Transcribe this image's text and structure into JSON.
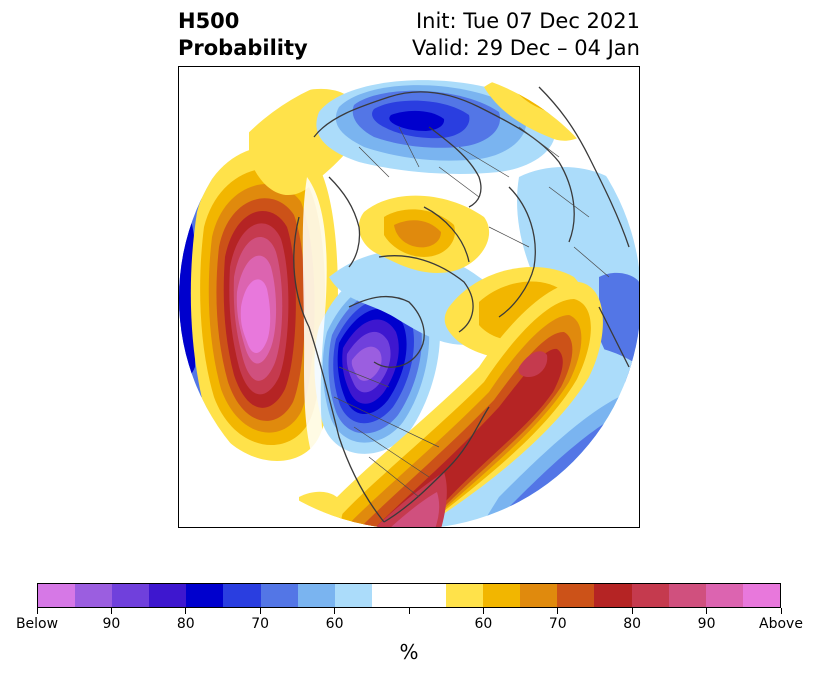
{
  "title": {
    "left_line1": "H500",
    "left_line2": "Probability",
    "right_line1": "Init: Tue 07 Dec 2021",
    "right_line2": "Valid: 29 Dec – 04 Jan"
  },
  "map": {
    "projection": "north polar stereographic",
    "anomalies": [
      {
        "region": "northeast Pacific / Gulf of Alaska",
        "category": "Above",
        "max_probability": "90+"
      },
      {
        "region": "western Canada / Pacific Northwest",
        "category": "Below",
        "max_probability": "90+"
      },
      {
        "region": "eastern United States / western Atlantic",
        "category": "Above",
        "max_probability": "80"
      },
      {
        "region": "central Atlantic",
        "category": "Below",
        "max_probability": "80"
      },
      {
        "region": "north-central Russia / Barents region",
        "category": "Below",
        "max_probability": "80"
      },
      {
        "region": "Siberia / East Asia",
        "category": "Above",
        "max_probability": "65"
      },
      {
        "region": "Greenland / Arctic",
        "category": "Above",
        "max_probability": "60"
      }
    ]
  },
  "colorbar": {
    "unit": "%",
    "tick_labels": [
      "Below",
      "90",
      "80",
      "70",
      "60",
      "60",
      "70",
      "80",
      "90",
      "Above"
    ],
    "colors": [
      "#d678e6",
      "#9b5ee0",
      "#7040dc",
      "#3e17cf",
      "#0000cd",
      "#2a3ee0",
      "#5376e6",
      "#7ab4f0",
      "#abdcfa",
      "#ffffff",
      "#ffffff",
      "#ffe24a",
      "#f2b600",
      "#e08a0d",
      "#cc5218",
      "#b52424",
      "#c53a4e",
      "#d0507e",
      "#dc64b0",
      "#e878dc"
    ]
  }
}
